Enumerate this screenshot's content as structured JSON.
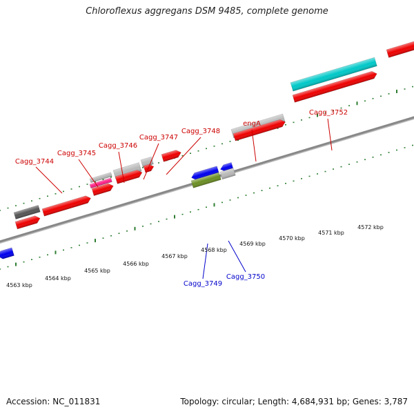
{
  "title": "Chloroflexus aggregans DSM 9485, complete genome",
  "accession": "Accession: NC_011831",
  "summary": "Topology: circular; Length: 4,684,931 bp; Genes: 3,787",
  "colors": {
    "forward_label": "#cc0000",
    "reverse_label": "#0000cc",
    "cds": "#ee0000",
    "rna": "#ff2288",
    "gene": "#b8b8b8",
    "pseudo": "#555555",
    "highlight": "#00c8c8",
    "reverse_cds": "#0000ee",
    "reverse_other": "#6b8e23",
    "ticks": "#2e7d32",
    "backbone": "#888888"
  },
  "forward_labels": [
    "Cagg_3744",
    "Cagg_3745",
    "Cagg_3746",
    "Cagg_3747",
    "Cagg_3748",
    "engA",
    "Cagg_3752"
  ],
  "reverse_labels": [
    "Cagg_3749",
    "Cagg_3750"
  ],
  "ticks": [
    "4563 kbp",
    "4564 kbp",
    "4565 kbp",
    "4566 kbp",
    "4567 kbp",
    "4568 kbp",
    "4569 kbp",
    "4570 kbp",
    "4571 kbp",
    "4572 kbp"
  ]
}
